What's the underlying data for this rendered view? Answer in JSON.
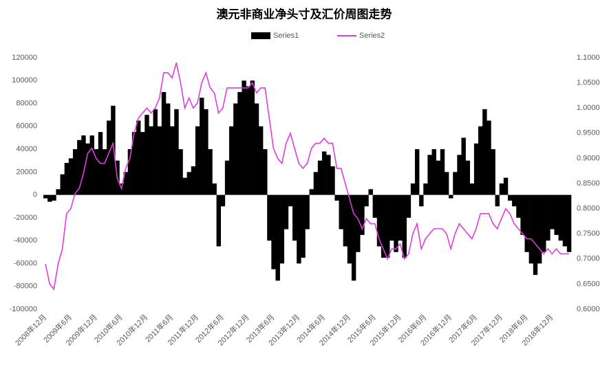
{
  "chart_data": {
    "type": "bar-line",
    "title": "澳元非商业净头寸及汇价周图走势",
    "categories": [
      "2008年12月",
      null,
      null,
      null,
      null,
      null,
      "2009年6月",
      null,
      null,
      null,
      null,
      null,
      "2009年12月",
      null,
      null,
      null,
      null,
      null,
      "2010年6月",
      null,
      null,
      null,
      null,
      null,
      "2010年12月",
      null,
      null,
      null,
      null,
      null,
      "2011年6月",
      null,
      null,
      null,
      null,
      null,
      "2011年12月",
      null,
      null,
      null,
      null,
      null,
      "2012年6月",
      null,
      null,
      null,
      null,
      null,
      "2012年12月",
      null,
      null,
      null,
      null,
      null,
      "2013年6月",
      null,
      null,
      null,
      null,
      null,
      "2013年12月",
      null,
      null,
      null,
      null,
      null,
      "2014年6月",
      null,
      null,
      null,
      null,
      null,
      "2014年12月",
      null,
      null,
      null,
      null,
      null,
      "2015年6月",
      null,
      null,
      null,
      null,
      null,
      "2015年12月",
      null,
      null,
      null,
      null,
      null,
      "2016年6月",
      null,
      null,
      null,
      null,
      null,
      "2016年12月",
      null,
      null,
      null,
      null,
      null,
      "2017年6月",
      null,
      null,
      null,
      null,
      null,
      "2017年12月",
      null,
      null,
      null,
      null,
      null,
      "2018年6月",
      null,
      null,
      null,
      null,
      null,
      "2018年12月",
      null,
      null,
      null,
      null
    ],
    "series": [
      {
        "name": "Series1",
        "color": "#000000",
        "values": [
          -3000,
          -6000,
          -5000,
          5000,
          18000,
          28000,
          32000,
          40000,
          48000,
          52000,
          45000,
          52000,
          40000,
          55000,
          40000,
          65000,
          78000,
          30000,
          10000,
          20000,
          40000,
          55000,
          65000,
          55000,
          70000,
          60000,
          75000,
          60000,
          90000,
          80000,
          60000,
          75000,
          40000,
          15000,
          20000,
          25000,
          60000,
          85000,
          75000,
          40000,
          10000,
          -45000,
          -10000,
          30000,
          60000,
          80000,
          90000,
          100000,
          95000,
          100000,
          80000,
          60000,
          40000,
          -40000,
          -65000,
          -75000,
          -60000,
          -30000,
          -10000,
          -40000,
          -60000,
          -55000,
          -30000,
          5000,
          20000,
          30000,
          38000,
          35000,
          25000,
          -5000,
          -30000,
          -45000,
          -60000,
          -75000,
          -50000,
          -35000,
          -10000,
          5000,
          -20000,
          -45000,
          -55000,
          -55000,
          -40000,
          -50000,
          -40000,
          -55000,
          -20000,
          10000,
          40000,
          -10000,
          10000,
          35000,
          40000,
          30000,
          40000,
          20000,
          -3000,
          20000,
          35000,
          50000,
          30000,
          10000,
          45000,
          60000,
          75000,
          65000,
          40000,
          -10000,
          10000,
          15000,
          -5000,
          -10000,
          -20000,
          -35000,
          -50000,
          -60000,
          -70000,
          -60000,
          -50000,
          -40000,
          -30000,
          -35000,
          -40000,
          -45000,
          -50000
        ]
      },
      {
        "name": "Series2",
        "color": "#e03adf",
        "axis": "y2",
        "values": [
          0.69,
          0.65,
          0.64,
          0.69,
          0.72,
          0.79,
          0.8,
          0.83,
          0.84,
          0.87,
          0.91,
          0.92,
          0.9,
          0.89,
          0.89,
          0.91,
          0.93,
          0.86,
          0.84,
          0.88,
          0.9,
          0.95,
          0.98,
          0.99,
          1.0,
          0.99,
          1.0,
          1.02,
          1.07,
          1.07,
          1.06,
          1.09,
          1.05,
          1.0,
          1.02,
          1.0,
          1.01,
          1.05,
          1.07,
          1.04,
          1.03,
          0.99,
          1.0,
          1.04,
          1.04,
          1.04,
          1.04,
          1.04,
          1.04,
          1.05,
          1.03,
          1.04,
          1.04,
          0.98,
          0.92,
          0.9,
          0.89,
          0.93,
          0.95,
          0.92,
          0.89,
          0.88,
          0.89,
          0.92,
          0.93,
          0.93,
          0.94,
          0.93,
          0.93,
          0.88,
          0.88,
          0.85,
          0.82,
          0.79,
          0.78,
          0.76,
          0.78,
          0.77,
          0.77,
          0.74,
          0.72,
          0.7,
          0.72,
          0.72,
          0.73,
          0.7,
          0.71,
          0.75,
          0.77,
          0.72,
          0.74,
          0.75,
          0.76,
          0.76,
          0.76,
          0.75,
          0.72,
          0.75,
          0.77,
          0.76,
          0.75,
          0.74,
          0.76,
          0.79,
          0.79,
          0.79,
          0.77,
          0.76,
          0.78,
          0.8,
          0.79,
          0.77,
          0.76,
          0.75,
          0.74,
          0.74,
          0.73,
          0.72,
          0.71,
          0.72,
          0.71,
          0.72,
          0.71,
          0.71,
          0.71
        ]
      }
    ],
    "ylim": [
      -100000,
      120000
    ],
    "yticks": [
      -100000,
      -80000,
      -60000,
      -40000,
      -20000,
      0,
      20000,
      40000,
      60000,
      80000,
      100000,
      120000
    ],
    "y2lim": [
      0.6,
      1.1
    ],
    "y2ticks": [
      {
        "value": 0.6,
        "label": "0.6000"
      },
      {
        "value": 0.65,
        "label": "0.6500"
      },
      {
        "value": 0.7,
        "label": "0.7000"
      },
      {
        "value": 0.75,
        "label": "0.7500"
      },
      {
        "value": 0.8,
        "label": "0.8000"
      },
      {
        "value": 0.85,
        "label": "0.8500"
      },
      {
        "value": 0.9,
        "label": "0.9000"
      },
      {
        "value": 0.95,
        "label": "0.9500"
      },
      {
        "value": 1.0,
        "label": "1.0000"
      },
      {
        "value": 1.05,
        "label": "1.0500"
      },
      {
        "value": 1.1,
        "label": "1.1000"
      }
    ],
    "legend": "top"
  }
}
